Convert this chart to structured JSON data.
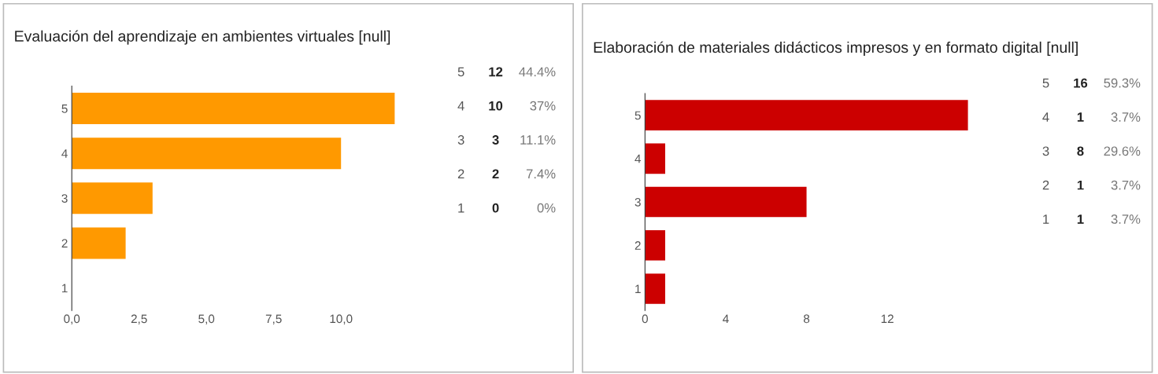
{
  "chart_data": [
    {
      "type": "bar",
      "orientation": "horizontal",
      "title": "Evaluación del aprendizaje en ambientes virtuales [null]",
      "categories": [
        "5",
        "4",
        "3",
        "2",
        "1"
      ],
      "series": [
        {
          "color": "#ff9900",
          "values": [
            12,
            10,
            3,
            2,
            0
          ]
        }
      ],
      "xlim": [
        0,
        12
      ],
      "xticks": [
        {
          "value": 0,
          "label": "0,0"
        },
        {
          "value": 2.5,
          "label": "2,5"
        },
        {
          "value": 5,
          "label": "5,0"
        },
        {
          "value": 7.5,
          "label": "7,5"
        },
        {
          "value": 10,
          "label": "10,0"
        }
      ],
      "annotations": [
        "5",
        "12",
        "44.4%",
        "4",
        "10",
        "37%",
        "3",
        "3",
        "11.1%",
        "2",
        "2",
        "7.4%",
        "1",
        "0",
        "0%"
      ],
      "grid": false,
      "legend": false
    },
    {
      "type": "bar",
      "orientation": "horizontal",
      "title": "Elaboración de materiales didácticos impresos y en formato digital [null]",
      "categories": [
        "5",
        "4",
        "3",
        "2",
        "1"
      ],
      "series": [
        {
          "color": "#cc0000",
          "values": [
            16,
            1,
            8,
            1,
            1
          ]
        }
      ],
      "xlim": [
        0,
        16
      ],
      "xticks": [
        0,
        4,
        8,
        12
      ],
      "annotations": [
        "5",
        "16",
        "59.3%",
        "4",
        "1",
        "3.7%",
        "3",
        "8",
        "29.6%",
        "2",
        "1",
        "3.7%",
        "1",
        "1",
        "3.7%"
      ],
      "grid": false,
      "legend": false
    }
  ]
}
